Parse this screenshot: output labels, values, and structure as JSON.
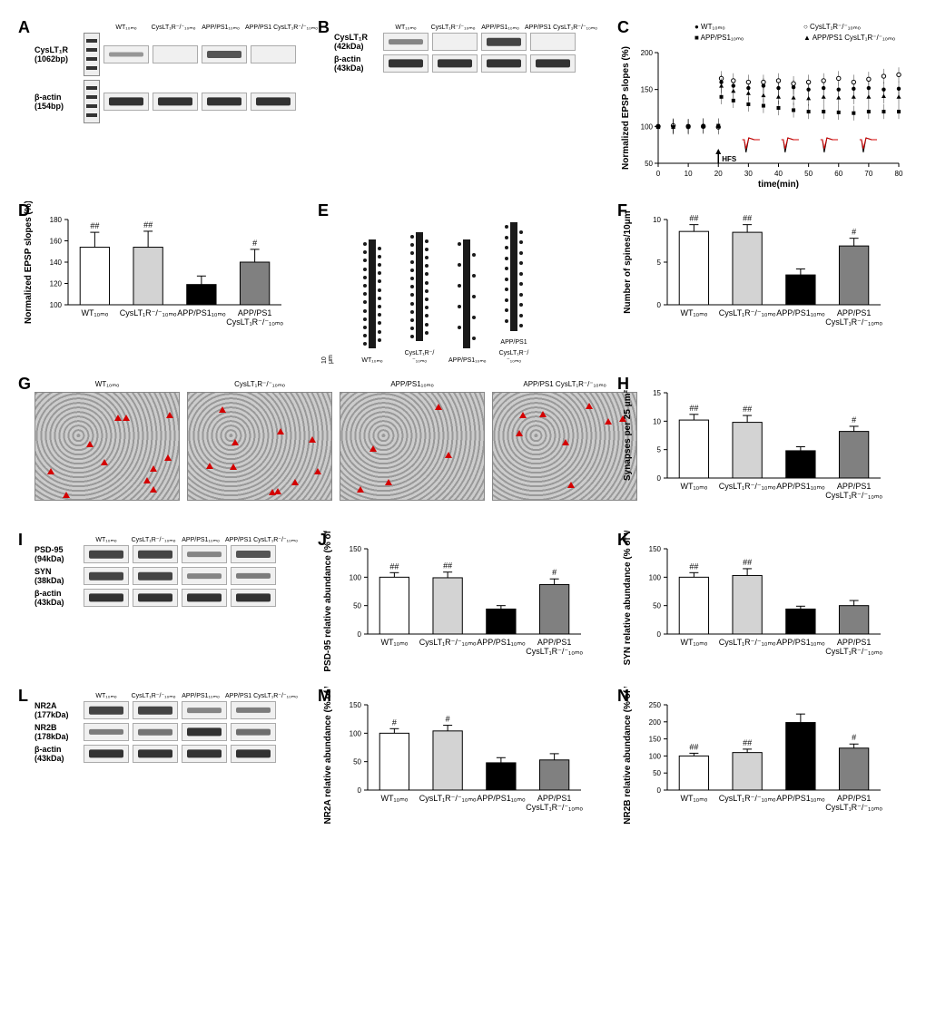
{
  "groups": [
    "WT₁₀ₘₒ",
    "CysLT₁R⁻/⁻₁₀ₘₒ",
    "APP/PS1₁₀ₘₒ",
    "APP/PS1 CysLT₁R⁻/⁻₁₀ₘₒ"
  ],
  "group_short": [
    "WT₁₀ₘₒ",
    "CysLT₁R⁻/⁻₁₀ₘₒ",
    "APP/PS1₁₀ₘₒ",
    "APP/PS1\nCysLT₁R⁻/⁻₁₀ₘₒ"
  ],
  "bar_colors": [
    "#ffffff",
    "#d3d3d3",
    "#000000",
    "#808080"
  ],
  "background": "#ffffff",
  "label_fontsize": 9,
  "panels": {
    "A": {
      "rows": [
        {
          "label": "CysLT₁R (1062bp)",
          "intensities": [
            0.3,
            0.02,
            0.7,
            0.02
          ]
        },
        {
          "label": "β-actin (154bp)",
          "intensities": [
            0.9,
            0.9,
            0.9,
            0.9
          ]
        }
      ]
    },
    "B": {
      "rows": [
        {
          "label": "CysLT₁R (42kDa)",
          "intensities": [
            0.4,
            0.02,
            0.8,
            0.02
          ]
        },
        {
          "label": "β-actin (43kDa)",
          "intensities": [
            0.9,
            0.9,
            0.9,
            0.9
          ]
        }
      ]
    },
    "C": {
      "type": "line",
      "xlabel": "time(min)",
      "ylabel": "Normalized EPSP slopes (%)",
      "xlim": [
        0,
        80
      ],
      "ylim": [
        50,
        200
      ],
      "xtick_step": 10,
      "ytick_step": 50,
      "hfs_time": 20,
      "legend": [
        "WT₁₀ₘₒ",
        "CysLT₁R⁻/⁻₁₀ₘₒ",
        "APP/PS1₁₀ₘₒ",
        "APP/PS1 CysLT₁R⁻/⁻₁₀ₘₒ"
      ],
      "markers": [
        "filled-circle",
        "open-circle",
        "filled-square",
        "filled-triangle"
      ],
      "marker_color": "#000000",
      "series": [
        {
          "x": [
            0,
            5,
            10,
            15,
            20,
            21,
            25,
            30,
            35,
            40,
            45,
            50,
            55,
            60,
            65,
            70,
            75,
            80
          ],
          "y": [
            100,
            100,
            99,
            101,
            100,
            160,
            155,
            152,
            155,
            152,
            153,
            150,
            152,
            150,
            151,
            152,
            150,
            151
          ]
        },
        {
          "x": [
            0,
            5,
            10,
            15,
            20,
            21,
            25,
            30,
            35,
            40,
            45,
            50,
            55,
            60,
            65,
            70,
            75,
            80
          ],
          "y": [
            100,
            101,
            100,
            100,
            99,
            165,
            162,
            160,
            160,
            162,
            158,
            160,
            162,
            165,
            160,
            164,
            168,
            170
          ]
        },
        {
          "x": [
            0,
            5,
            10,
            15,
            20,
            21,
            25,
            30,
            35,
            40,
            45,
            50,
            55,
            60,
            65,
            70,
            75,
            80
          ],
          "y": [
            100,
            99,
            100,
            100,
            101,
            140,
            135,
            130,
            128,
            125,
            122,
            120,
            120,
            119,
            118,
            120,
            120,
            120
          ]
        },
        {
          "x": [
            0,
            5,
            10,
            15,
            20,
            21,
            25,
            30,
            35,
            40,
            45,
            50,
            55,
            60,
            65,
            70,
            75,
            80
          ],
          "y": [
            99,
            100,
            100,
            101,
            100,
            155,
            148,
            145,
            142,
            140,
            139,
            138,
            140,
            139,
            140,
            140,
            141,
            140
          ]
        }
      ],
      "err": 10,
      "trace_colors": [
        "#000000",
        "#d40000"
      ]
    },
    "D": {
      "type": "bar",
      "ylabel": "Normalized EPSP slopes (%)",
      "ylim": [
        100,
        180
      ],
      "ytick_step": 20,
      "values": [
        154,
        154,
        119,
        140
      ],
      "err": [
        14,
        15,
        8,
        12
      ],
      "sig": [
        "##",
        "##",
        "",
        "#"
      ]
    },
    "F": {
      "type": "bar",
      "ylabel": "Number of spines/10μm",
      "ylim": [
        0,
        10
      ],
      "ytick_step": 5,
      "values": [
        8.6,
        8.5,
        3.5,
        6.9
      ],
      "err": [
        0.8,
        0.9,
        0.7,
        0.9
      ],
      "sig": [
        "##",
        "##",
        "",
        "#"
      ]
    },
    "H": {
      "type": "bar",
      "ylabel": "Synapses per 25 μm²",
      "ylim": [
        0,
        15
      ],
      "ytick_step": 5,
      "values": [
        10.2,
        9.8,
        4.8,
        8.2
      ],
      "err": [
        1.0,
        1.2,
        0.7,
        0.9
      ],
      "sig": [
        "##",
        "##",
        "",
        "#"
      ]
    },
    "I": {
      "rows": [
        {
          "label": "PSD-95 (94kDa)",
          "intensities": [
            0.8,
            0.8,
            0.4,
            0.7
          ]
        },
        {
          "label": "SYN (38kDa)",
          "intensities": [
            0.8,
            0.8,
            0.4,
            0.45
          ]
        },
        {
          "label": "β-actin (43kDa)",
          "intensities": [
            0.9,
            0.9,
            0.9,
            0.9
          ]
        }
      ]
    },
    "J": {
      "type": "bar",
      "ylabel": "PSD-95 relative abundance (% of WT)",
      "ylim": [
        0,
        150
      ],
      "ytick_step": 50,
      "values": [
        100,
        99,
        44,
        87
      ],
      "err": [
        8,
        10,
        6,
        10
      ],
      "sig": [
        "##",
        "##",
        "",
        "#"
      ]
    },
    "K": {
      "type": "bar",
      "ylabel": "SYN relative abundance (% of WT)",
      "ylim": [
        0,
        150
      ],
      "ytick_step": 50,
      "values": [
        100,
        103,
        44,
        50
      ],
      "err": [
        8,
        12,
        5,
        9
      ],
      "sig": [
        "##",
        "##",
        "",
        ""
      ]
    },
    "L": {
      "rows": [
        {
          "label": "NR2A (177kDa)",
          "intensities": [
            0.8,
            0.8,
            0.4,
            0.45
          ]
        },
        {
          "label": "NR2B (178kDa)",
          "intensities": [
            0.45,
            0.5,
            0.9,
            0.55
          ]
        },
        {
          "label": "β-actin (43kDa)",
          "intensities": [
            0.9,
            0.9,
            0.9,
            0.9
          ]
        }
      ]
    },
    "M": {
      "type": "bar",
      "ylabel": "NR2A relative abundance (% of WT)",
      "ylim": [
        0,
        150
      ],
      "ytick_step": 50,
      "values": [
        100,
        104,
        48,
        53
      ],
      "err": [
        8,
        10,
        9,
        11
      ],
      "sig": [
        "#",
        "#",
        "",
        ""
      ]
    },
    "N": {
      "type": "bar",
      "ylabel": "NR2B relative abundance (% of WT)",
      "ylim": [
        0,
        250
      ],
      "ytick_step": 50,
      "values": [
        100,
        110,
        198,
        123
      ],
      "err": [
        8,
        10,
        25,
        12
      ],
      "sig": [
        "##",
        "##",
        "",
        "#"
      ]
    },
    "E": {
      "spine_counts": [
        25,
        25,
        10,
        20
      ],
      "scale_label": "10 μm"
    },
    "G": {
      "arrow_counts": [
        11,
        10,
        5,
        8
      ],
      "scale_label": ""
    }
  }
}
